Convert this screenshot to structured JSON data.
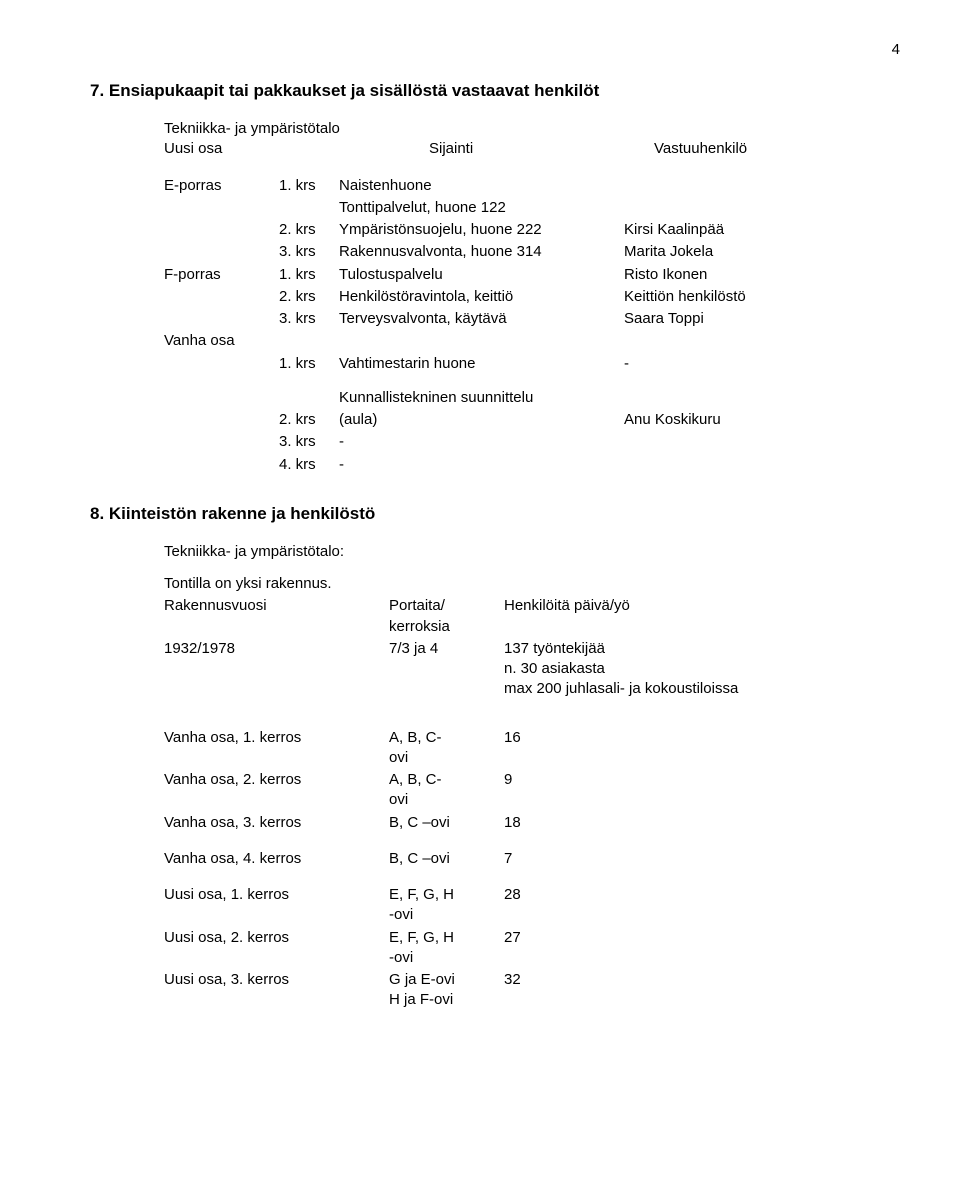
{
  "pageNumber": "4",
  "section7": {
    "heading": "7. Ensiapukaapit tai pakkaukset ja sisällöstä vastaavat henkilöt",
    "subtitle": "Tekniikka- ja ympäristötalo",
    "colHeaderLeft": "Uusi osa",
    "colHeaderMid": "Sijainti",
    "colHeaderRight": "Vastuuhenkilö",
    "entrances": {
      "eporras": {
        "label": "E-porras",
        "rows": [
          {
            "floor": "1. krs",
            "desc": "Naistenhuone",
            "person": ""
          },
          {
            "floor": "",
            "desc": "Tonttipalvelut, huone 122",
            "person": ""
          },
          {
            "floor": "2. krs",
            "desc": "Ympäristönsuojelu, huone 222",
            "person": "Kirsi Kaalinpää"
          },
          {
            "floor": "3. krs",
            "desc": "Rakennusvalvonta, huone 314",
            "person": "Marita Jokela"
          }
        ]
      },
      "fporras": {
        "label": "F-porras",
        "rows": [
          {
            "floor": "1. krs",
            "desc": "Tulostuspalvelu",
            "person": "Risto Ikonen"
          },
          {
            "floor": "2. krs",
            "desc": "Henkilöstöravintola, keittiö",
            "person": "Keittiön henkilöstö"
          },
          {
            "floor": "3. krs",
            "desc": "Terveysvalvonta, käytävä",
            "person": "Saara Toppi"
          }
        ]
      },
      "vanha": {
        "label": "Vanha osa",
        "rows": [
          {
            "floor": "1. krs",
            "desc": "Vahtimestarin huone",
            "person": "-"
          }
        ]
      },
      "suunnittelu": {
        "label": "",
        "rows": [
          {
            "floor": "",
            "desc": "Kunnallistekninen suunnittelu",
            "person": ""
          },
          {
            "floor": "2. krs",
            "desc": "(aula)",
            "person": "Anu Koskikuru"
          },
          {
            "floor": "3. krs",
            "desc": "-",
            "person": ""
          },
          {
            "floor": "4. krs",
            "desc": "-",
            "person": ""
          }
        ]
      }
    }
  },
  "section8": {
    "heading": "8. Kiinteistön rakenne ja henkilöstö",
    "subtitle": "Tekniikka- ja ympäristötalo:",
    "tontilla": "Tontilla on yksi rakennus.",
    "headers": {
      "c1": "Rakennusvuosi",
      "c2l1": "Portaita/",
      "c2l2": "kerroksia",
      "c3": "Henkilöitä päivä/yö"
    },
    "data": {
      "c1": "1932/1978",
      "c2": "7/3 ja 4",
      "c3l1": "137 työntekijää",
      "c3l2": "n. 30 asiakasta",
      "c3l3": "max 200 juhlasali- ja kokoustiloissa"
    },
    "doors": {
      "group1": [
        {
          "d1": "Vanha osa, 1. kerros",
          "d2l1": "A, B, C-",
          "d2l2": "ovi",
          "d3": "16"
        },
        {
          "d1": "Vanha osa, 2. kerros",
          "d2l1": "A, B, C-",
          "d2l2": "ovi",
          "d3": "9"
        },
        {
          "d1": "Vanha osa, 3. kerros",
          "d2l1": "B, C –ovi",
          "d2l2": "",
          "d3": "18"
        }
      ],
      "group2": [
        {
          "d1": "Vanha osa, 4. kerros",
          "d2l1": "B, C –ovi",
          "d2l2": "",
          "d3": "7"
        }
      ],
      "group3": [
        {
          "d1": "Uusi osa, 1. kerros",
          "d2l1": "E, F, G, H",
          "d2l2": "-ovi",
          "d3": "28"
        },
        {
          "d1": "Uusi osa, 2. kerros",
          "d2l1": "E, F, G, H",
          "d2l2": "-ovi",
          "d3": "27"
        },
        {
          "d1": "Uusi osa, 3. kerros",
          "d2l1": "G ja E-ovi",
          "d2l2": "H ja F-ovi",
          "d3": "32"
        }
      ]
    }
  }
}
